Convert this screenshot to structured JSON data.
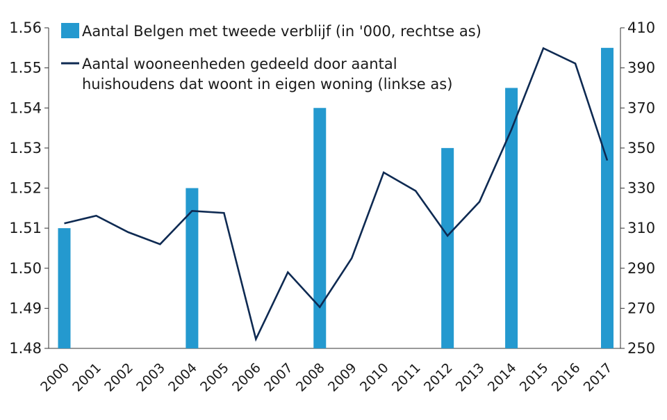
{
  "chart_data": {
    "type": "bar+line",
    "categories": [
      "2000",
      "2001",
      "2002",
      "2003",
      "2004",
      "2005",
      "2006",
      "2007",
      "2008",
      "2009",
      "2010",
      "2011",
      "2012",
      "2013",
      "2014",
      "2015",
      "2016",
      "2017"
    ],
    "series": [
      {
        "name": "Aantal Belgen met tweede verblijf (in '000, rechtse as)",
        "type": "bar",
        "axis": "right",
        "color": "#2499cf",
        "values": [
          310,
          null,
          null,
          null,
          330,
          null,
          null,
          null,
          370,
          null,
          null,
          null,
          350,
          null,
          380,
          null,
          null,
          400
        ]
      },
      {
        "name": "Aantal wooneenheden gedeeld door aantal huishoudens dat woont in eigen woning (linkse as)",
        "type": "line",
        "axis": "left",
        "color": "#0e2a52",
        "values": [
          1.5112,
          1.5131,
          1.509,
          1.506,
          1.5143,
          1.5138,
          1.4823,
          1.499,
          1.4903,
          1.5025,
          1.5239,
          1.5193,
          1.5081,
          1.5166,
          1.5346,
          1.5549,
          1.5511,
          1.5269
        ]
      }
    ],
    "legend_lines": [
      [
        "Aantal Belgen met tweede verblijf (in '000, rechtse as)"
      ],
      [
        "Aantal wooneenheden gedeeld door aantal",
        "huishoudens dat woont in eigen woning (linkse as)"
      ]
    ],
    "y_left": {
      "ylim": [
        1.48,
        1.56
      ],
      "ticks": [
        "1.48",
        "1.49",
        "1.50",
        "1.51",
        "1.52",
        "1.53",
        "1.54",
        "1.55",
        "1.56"
      ]
    },
    "y_right": {
      "ylim": [
        250,
        410
      ],
      "ticks": [
        "250",
        "270",
        "290",
        "310",
        "330",
        "350",
        "370",
        "390",
        "410"
      ]
    },
    "legend_position": "top-left",
    "grid": false
  }
}
